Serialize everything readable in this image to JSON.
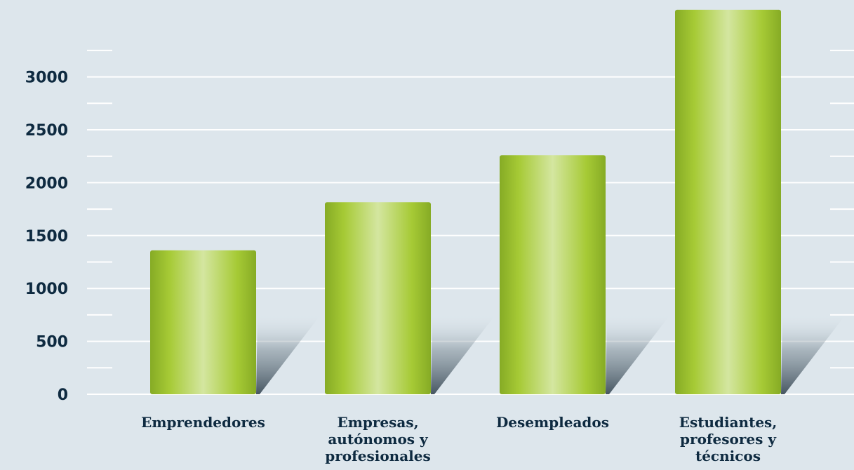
{
  "chart_data": {
    "type": "bar",
    "categories": [
      "Emprendedores",
      "Empresas, autónomos y profesionales",
      "Desempleados",
      "Estudiantes, profesores y técnicos"
    ],
    "category_label_lines": [
      [
        "Emprendedores"
      ],
      [
        "Empresas,",
        "autónomos y",
        "profesionales"
      ],
      [
        "Desempleados"
      ],
      [
        "Estudiantes,",
        "profesores y",
        "técnicos"
      ]
    ],
    "values": [
      1360,
      1815,
      2260,
      3635
    ],
    "ylim": [
      0,
      3650
    ],
    "yticks": [
      "0",
      "500",
      "1000",
      "1500",
      "2000",
      "2500",
      "3000"
    ],
    "ytick_values": [
      0,
      500,
      1000,
      1500,
      2000,
      2500,
      3000
    ],
    "minor_ticks": [
      250,
      750,
      1250,
      1750,
      2250,
      2750,
      3250
    ],
    "grid": true,
    "colors": {
      "background": "#dde6ec",
      "bar_light": "#d4e6a0",
      "bar_mid": "#a6ca35",
      "bar_dark": "#86ab25",
      "text": "#0e2a40",
      "grid": "#ffffff"
    }
  }
}
